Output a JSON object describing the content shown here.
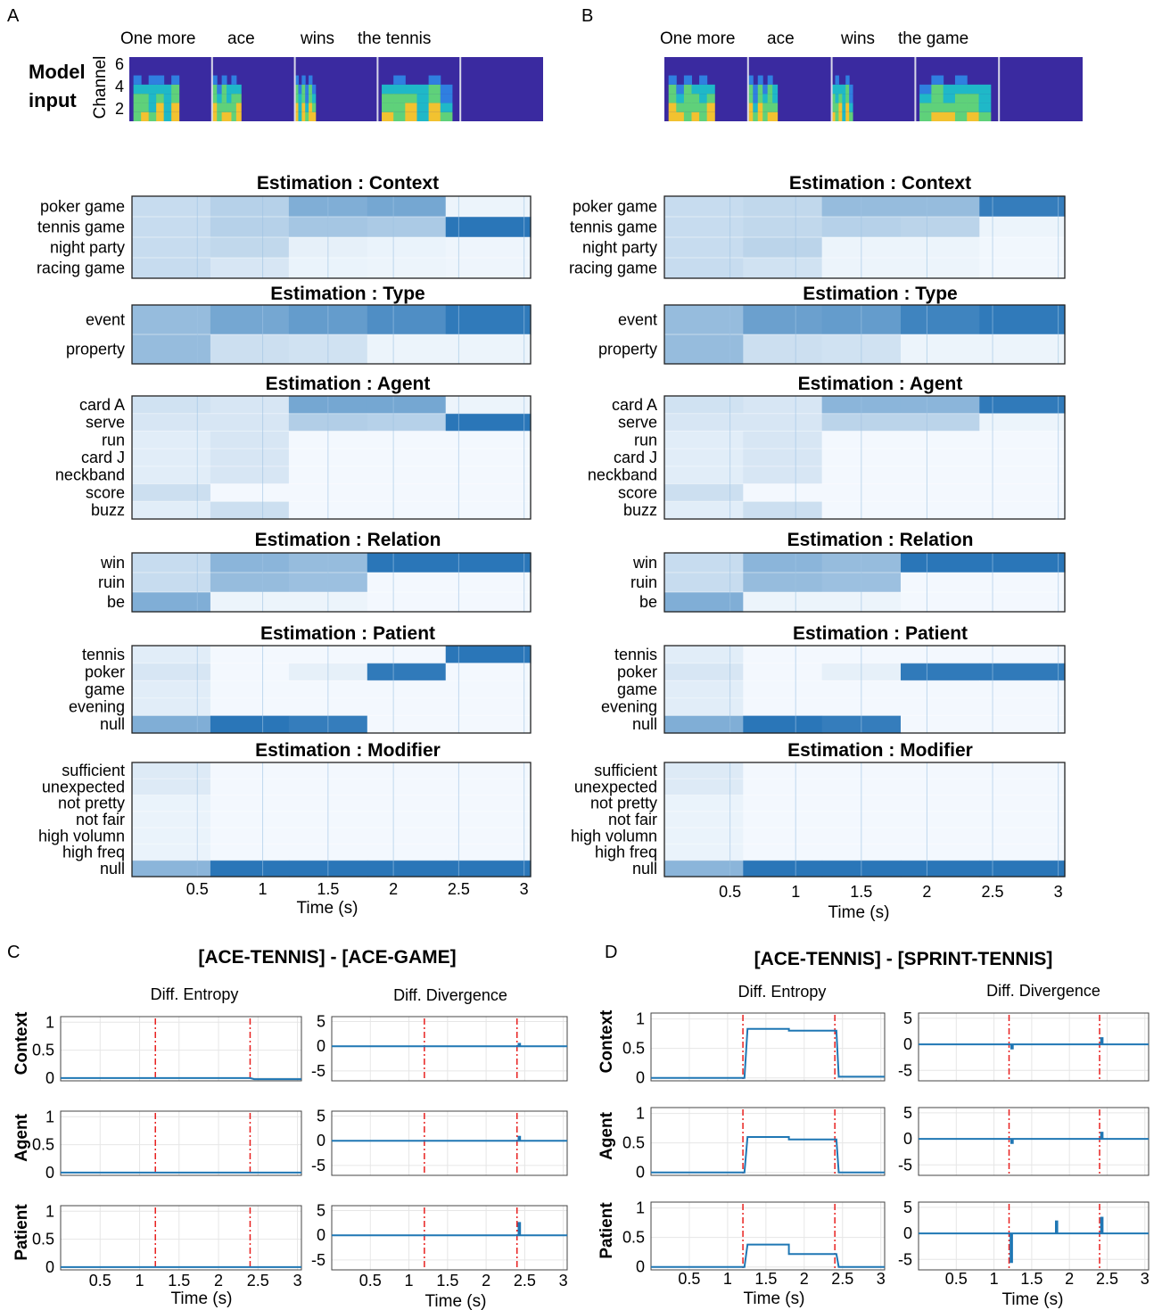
{
  "panel_letters": {
    "a": "A",
    "b": "B",
    "c": "C",
    "d": "D"
  },
  "model_input": {
    "label_line1": "Model",
    "label_line2": "input",
    "channel_label": "Channel",
    "channel_ticks": [
      "6",
      "4",
      "2"
    ]
  },
  "heatmap_titles": {
    "context": "Estimation : Context",
    "type": "Estimation : Type",
    "agent": "Estimation : Agent",
    "relation": "Estimation : Relation",
    "patient": "Estimation : Patient",
    "modifier": "Estimation : Modifier"
  },
  "line_plot_text": {
    "title_c": "[ACE-TENNIS] - [ACE-GAME]",
    "title_d": "[ACE-TENNIS] - [SPRINT-TENNIS]",
    "col_entropy": "Diff. Entropy",
    "col_divergence": "Diff. Divergence",
    "row_context": "Context",
    "row_agent": "Agent",
    "row_patient": "Patient"
  },
  "axis": {
    "xlabel": "Time (s)",
    "xticks": [
      "0.5",
      "1",
      "1.5",
      "2",
      "2.5",
      "3"
    ],
    "entropy_yticks": [
      "1",
      "0.5",
      "0"
    ],
    "divergence_yticks": [
      "5",
      "0",
      "-5"
    ]
  },
  "colors": {
    "heat_dark": "#1f6fb4",
    "line_blue": "#1f77b4",
    "dashed_red": "#e8201f",
    "spec_bg": "#3a2aa0"
  },
  "chart_data": [
    {
      "id": "A-model-input",
      "type": "heatmap",
      "words": [
        "One more",
        "ace",
        "wins",
        "the tennis"
      ],
      "ylabel": "Channel",
      "yticks": [
        2,
        4,
        6
      ]
    },
    {
      "id": "B-model-input",
      "type": "heatmap",
      "words": [
        "One more",
        "ace",
        "wins",
        "the game"
      ],
      "ylabel": "Channel",
      "yticks": [
        2,
        4,
        6
      ]
    },
    {
      "id": "A-heatmaps",
      "type": "heatmap",
      "xlabel": "Time (s)",
      "xticks": [
        0.5,
        1,
        1.5,
        2,
        2.5,
        3
      ],
      "xlim": [
        0,
        3.05
      ],
      "segment_edges": [
        0,
        0.6,
        1.2,
        1.8,
        2.4,
        3.05
      ],
      "panels": [
        {
          "title": "Estimation : Context",
          "rows": [
            "poker game",
            "tennis game",
            "night party",
            "racing game"
          ],
          "values": [
            [
              0.22,
              0.3,
              0.55,
              0.6,
              0.05
            ],
            [
              0.22,
              0.3,
              0.38,
              0.35,
              0.95
            ],
            [
              0.22,
              0.25,
              0.08,
              0.06,
              0.04
            ],
            [
              0.22,
              0.15,
              0.06,
              0.05,
              0.04
            ]
          ]
        },
        {
          "title": "Estimation : Type",
          "rows": [
            "event",
            "property"
          ],
          "values": [
            [
              0.45,
              0.6,
              0.68,
              0.78,
              0.92
            ],
            [
              0.45,
              0.2,
              0.18,
              0.05,
              0.05
            ]
          ]
        },
        {
          "title": "Estimation : Agent",
          "rows": [
            "card A",
            "serve",
            "run",
            "card J",
            "neckband",
            "score",
            "buzz"
          ],
          "values": [
            [
              0.18,
              0.15,
              0.6,
              0.6,
              0.05
            ],
            [
              0.15,
              0.15,
              0.32,
              0.3,
              0.95
            ],
            [
              0.1,
              0.15,
              0.02,
              0.02,
              0.02
            ],
            [
              0.1,
              0.15,
              0.02,
              0.02,
              0.02
            ],
            [
              0.1,
              0.15,
              0.02,
              0.02,
              0.02
            ],
            [
              0.2,
              0.02,
              0.02,
              0.02,
              0.02
            ],
            [
              0.1,
              0.2,
              0.02,
              0.02,
              0.02
            ]
          ]
        },
        {
          "title": "Estimation : Relation",
          "rows": [
            "win",
            "ruin",
            "be"
          ],
          "values": [
            [
              0.22,
              0.5,
              0.45,
              0.95,
              0.95
            ],
            [
              0.22,
              0.45,
              0.42,
              0.02,
              0.02
            ],
            [
              0.55,
              0.05,
              0.05,
              0.02,
              0.02
            ]
          ]
        },
        {
          "title": "Estimation : Patient",
          "rows": [
            "tennis",
            "poker",
            "game",
            "evening",
            "null"
          ],
          "values": [
            [
              0.1,
              0.02,
              0.02,
              0.02,
              0.95
            ],
            [
              0.15,
              0.02,
              0.08,
              0.92,
              0.02
            ],
            [
              0.1,
              0.02,
              0.02,
              0.02,
              0.02
            ],
            [
              0.1,
              0.02,
              0.02,
              0.02,
              0.02
            ],
            [
              0.55,
              0.95,
              0.9,
              0.02,
              0.02
            ]
          ]
        },
        {
          "title": "Estimation : Modifier",
          "rows": [
            "sufficient",
            "unexpected",
            "not pretty",
            "not fair",
            "high volumn",
            "high freq",
            "null"
          ],
          "values": [
            [
              0.12,
              0.02,
              0.02,
              0.02,
              0.02
            ],
            [
              0.12,
              0.02,
              0.02,
              0.02,
              0.02
            ],
            [
              0.06,
              0.02,
              0.02,
              0.02,
              0.02
            ],
            [
              0.06,
              0.02,
              0.02,
              0.02,
              0.02
            ],
            [
              0.06,
              0.02,
              0.02,
              0.02,
              0.02
            ],
            [
              0.06,
              0.02,
              0.02,
              0.02,
              0.02
            ],
            [
              0.5,
              0.95,
              0.95,
              0.95,
              0.95
            ]
          ]
        }
      ]
    },
    {
      "id": "B-heatmaps",
      "type": "heatmap",
      "xlabel": "Time (s)",
      "xticks": [
        0.5,
        1,
        1.5,
        2,
        2.5,
        3
      ],
      "xlim": [
        0,
        3.05
      ],
      "segment_edges": [
        0,
        0.6,
        1.2,
        1.8,
        2.4,
        3.05
      ],
      "panels": [
        {
          "title": "Estimation : Context",
          "rows": [
            "poker game",
            "tennis game",
            "night party",
            "racing game"
          ],
          "values": [
            [
              0.22,
              0.25,
              0.45,
              0.45,
              0.9
            ],
            [
              0.22,
              0.25,
              0.3,
              0.28,
              0.05
            ],
            [
              0.22,
              0.28,
              0.05,
              0.05,
              0.03
            ],
            [
              0.22,
              0.18,
              0.05,
              0.05,
              0.03
            ]
          ]
        },
        {
          "title": "Estimation : Type",
          "rows": [
            "event",
            "property"
          ],
          "values": [
            [
              0.45,
              0.65,
              0.68,
              0.85,
              0.92
            ],
            [
              0.45,
              0.2,
              0.18,
              0.05,
              0.05
            ]
          ]
        },
        {
          "title": "Estimation : Agent",
          "rows": [
            "card A",
            "serve",
            "run",
            "card J",
            "neckband",
            "score",
            "buzz"
          ],
          "values": [
            [
              0.18,
              0.15,
              0.5,
              0.5,
              0.92
            ],
            [
              0.15,
              0.15,
              0.28,
              0.28,
              0.05
            ],
            [
              0.1,
              0.15,
              0.02,
              0.02,
              0.02
            ],
            [
              0.1,
              0.15,
              0.02,
              0.02,
              0.02
            ],
            [
              0.1,
              0.15,
              0.02,
              0.02,
              0.02
            ],
            [
              0.2,
              0.02,
              0.02,
              0.02,
              0.02
            ],
            [
              0.1,
              0.2,
              0.02,
              0.02,
              0.02
            ]
          ]
        },
        {
          "title": "Estimation : Relation",
          "rows": [
            "win",
            "ruin",
            "be"
          ],
          "values": [
            [
              0.22,
              0.5,
              0.45,
              0.95,
              0.95
            ],
            [
              0.22,
              0.45,
              0.42,
              0.02,
              0.02
            ],
            [
              0.55,
              0.05,
              0.05,
              0.02,
              0.02
            ]
          ]
        },
        {
          "title": "Estimation : Patient",
          "rows": [
            "tennis",
            "poker",
            "game",
            "evening",
            "null"
          ],
          "values": [
            [
              0.1,
              0.02,
              0.02,
              0.02,
              0.02
            ],
            [
              0.15,
              0.02,
              0.08,
              0.92,
              0.92
            ],
            [
              0.1,
              0.02,
              0.02,
              0.02,
              0.02
            ],
            [
              0.1,
              0.02,
              0.02,
              0.02,
              0.02
            ],
            [
              0.55,
              0.95,
              0.9,
              0.02,
              0.02
            ]
          ]
        },
        {
          "title": "Estimation : Modifier",
          "rows": [
            "sufficient",
            "unexpected",
            "not pretty",
            "not fair",
            "high volumn",
            "high freq",
            "null"
          ],
          "values": [
            [
              0.12,
              0.02,
              0.02,
              0.02,
              0.02
            ],
            [
              0.12,
              0.02,
              0.02,
              0.02,
              0.02
            ],
            [
              0.06,
              0.02,
              0.02,
              0.02,
              0.02
            ],
            [
              0.06,
              0.02,
              0.02,
              0.02,
              0.02
            ],
            [
              0.06,
              0.02,
              0.02,
              0.02,
              0.02
            ],
            [
              0.06,
              0.02,
              0.02,
              0.02,
              0.02
            ],
            [
              0.5,
              0.95,
              0.95,
              0.95,
              0.95
            ]
          ]
        }
      ]
    },
    {
      "id": "C-diff-entropy",
      "type": "line",
      "title": "[ACE-TENNIS] - [ACE-GAME]",
      "xlabel": "Time (s)",
      "xlim": [
        0,
        3.05
      ],
      "ylim": [
        -0.05,
        1.1
      ],
      "vlines": [
        1.2,
        2.4
      ],
      "series": [
        {
          "name": "Context",
          "x": [
            0,
            2.4,
            2.45,
            3.05
          ],
          "y": [
            0,
            0,
            -0.02,
            -0.02
          ]
        },
        {
          "name": "Agent",
          "x": [
            0,
            3.05
          ],
          "y": [
            0,
            0
          ]
        },
        {
          "name": "Patient",
          "x": [
            0,
            3.05
          ],
          "y": [
            0,
            0
          ]
        }
      ]
    },
    {
      "id": "C-diff-divergence",
      "type": "line",
      "xlabel": "Time (s)",
      "xlim": [
        0,
        3.05
      ],
      "ylim": [
        -7,
        6
      ],
      "vlines": [
        1.2,
        2.4
      ],
      "series": [
        {
          "name": "Context",
          "x": [
            0,
            2.42,
            2.42,
            2.44,
            2.44,
            3.05
          ],
          "y": [
            0,
            0,
            0.5,
            0.5,
            0,
            0
          ]
        },
        {
          "name": "Agent",
          "x": [
            0,
            2.42,
            2.42,
            2.44,
            2.44,
            3.05
          ],
          "y": [
            0,
            0,
            0.8,
            0.8,
            0,
            0
          ]
        },
        {
          "name": "Patient",
          "x": [
            0,
            2.42,
            2.42,
            2.44,
            2.44,
            3.05
          ],
          "y": [
            0,
            0,
            2.5,
            2.5,
            0,
            0
          ]
        }
      ]
    },
    {
      "id": "D-diff-entropy",
      "type": "line",
      "title": "[ACE-TENNIS] - [SPRINT-TENNIS]",
      "xlabel": "Time (s)",
      "xlim": [
        0,
        3.05
      ],
      "ylim": [
        -0.05,
        1.1
      ],
      "vlines": [
        1.2,
        2.4
      ],
      "series": [
        {
          "name": "Context",
          "x": [
            0,
            1.22,
            1.26,
            1.8,
            1.8,
            2.42,
            2.45,
            3.05
          ],
          "y": [
            0,
            0,
            0.83,
            0.83,
            0.8,
            0.8,
            0.02,
            0.02
          ]
        },
        {
          "name": "Agent",
          "x": [
            0,
            1.22,
            1.26,
            1.8,
            1.8,
            2.42,
            2.45,
            3.05
          ],
          "y": [
            0,
            0,
            0.6,
            0.6,
            0.56,
            0.56,
            0,
            0
          ]
        },
        {
          "name": "Patient",
          "x": [
            0,
            1.22,
            1.26,
            1.8,
            1.8,
            2.42,
            2.45,
            3.05
          ],
          "y": [
            0,
            0,
            0.38,
            0.38,
            0.22,
            0.22,
            0,
            0
          ]
        }
      ]
    },
    {
      "id": "D-diff-divergence",
      "type": "line",
      "xlabel": "Time (s)",
      "xlim": [
        0,
        3.05
      ],
      "ylim": [
        -7,
        6
      ],
      "vlines": [
        1.2,
        2.4
      ],
      "series": [
        {
          "name": "Context",
          "x": [
            0,
            1.23,
            1.23,
            1.25,
            1.25,
            2.42,
            2.42,
            2.44,
            2.44,
            3.05
          ],
          "y": [
            0,
            0,
            -0.8,
            -0.8,
            0,
            0,
            1.2,
            1.2,
            0,
            0
          ]
        },
        {
          "name": "Agent",
          "x": [
            0,
            1.23,
            1.23,
            1.25,
            1.25,
            2.42,
            2.42,
            2.44,
            2.44,
            3.05
          ],
          "y": [
            0,
            0,
            -0.8,
            -0.8,
            0,
            0,
            1.2,
            1.2,
            0,
            0
          ]
        },
        {
          "name": "Patient",
          "x": [
            0,
            1.22,
            1.22,
            1.24,
            1.24,
            1.82,
            1.82,
            1.84,
            1.84,
            2.42,
            2.42,
            2.44,
            2.44,
            3.05
          ],
          "y": [
            0,
            0,
            -5.5,
            -5.5,
            0,
            0,
            2.3,
            2.3,
            0,
            0,
            3.0,
            3.0,
            0,
            0
          ]
        }
      ]
    }
  ]
}
